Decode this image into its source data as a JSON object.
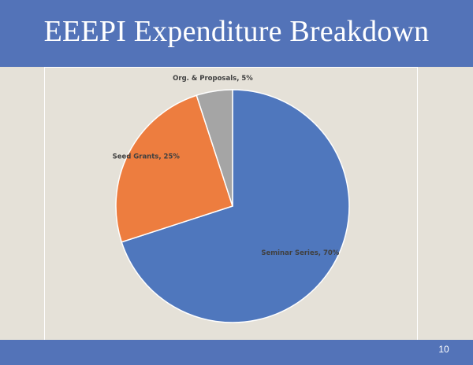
{
  "slide": {
    "title": "EEEPI Expenditure Breakdown",
    "page_number": "10"
  },
  "colors": {
    "header": "#5373b8",
    "background": "#e5e1d8",
    "seminar": "#4f77bd",
    "seed": "#ed7d3f",
    "org": "#a5a5a5"
  },
  "chart_data": {
    "type": "pie",
    "categories": [
      "Seminar Series",
      "Seed Grants",
      "Org. & Proposals"
    ],
    "values": [
      70,
      25,
      5
    ],
    "labels": [
      "Seminar Series, 70%",
      "Seed Grants, 25%",
      "Org. & Proposals, 5%"
    ]
  }
}
